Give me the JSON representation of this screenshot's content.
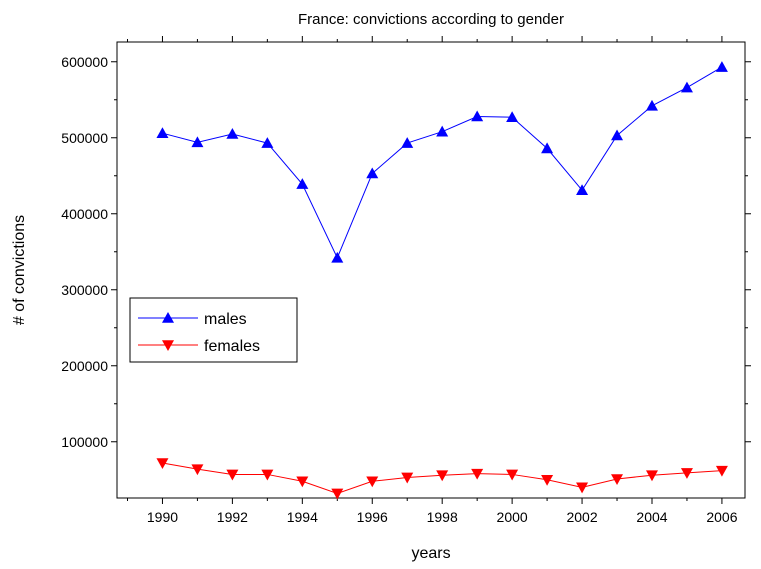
{
  "chart_data": {
    "type": "line",
    "title": "France: convictions according to gender",
    "x_label": "years",
    "y_label": "# of convictions",
    "x": [
      1990,
      1991,
      1992,
      1993,
      1994,
      1995,
      1996,
      1997,
      1998,
      1999,
      2000,
      2001,
      2002,
      2003,
      2004,
      2005,
      2006
    ],
    "series": [
      {
        "name": "males",
        "color": "#0000ff",
        "marker": "triangle-up",
        "values": [
          506000,
          494000,
          505000,
          493000,
          439000,
          342000,
          453000,
          493000,
          508000,
          528000,
          527000,
          486000,
          431000,
          503000,
          542000,
          566000,
          593000
        ]
      },
      {
        "name": "females",
        "color": "#ff0000",
        "marker": "triangle-down",
        "values": [
          72000,
          64000,
          57000,
          57000,
          48000,
          32000,
          48000,
          53000,
          56000,
          58000,
          57000,
          50000,
          40000,
          51000,
          56000,
          59000,
          62000
        ]
      }
    ],
    "xlim": [
      1988.7,
      2006.66
    ],
    "ylim": [
      26000,
      626000
    ],
    "xticks": [
      1990,
      1992,
      1994,
      1996,
      1998,
      2000,
      2002,
      2004,
      2006
    ],
    "yticks": [
      100000,
      200000,
      300000,
      400000,
      500000,
      600000
    ],
    "legend": "center-left",
    "grid": false
  }
}
